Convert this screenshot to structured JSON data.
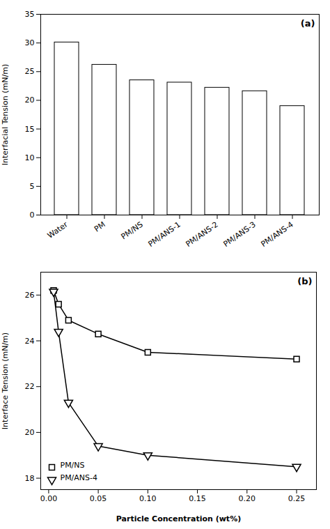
{
  "chart_data": [
    {
      "type": "bar",
      "categories": [
        "Water",
        "PM",
        "PM/NS",
        "PM/ANS-1",
        "PM/ANS-2",
        "PM/ANS-3",
        "PM/ANS-4"
      ],
      "values": [
        30.1,
        26.2,
        23.5,
        23.1,
        22.2,
        21.6,
        19.0
      ],
      "color": "white",
      "ylabel": "Interfacial Tension (mN/m)",
      "ylim": [
        0,
        35
      ],
      "yticks": [
        0,
        5,
        10,
        15,
        20,
        25,
        30,
        35
      ],
      "annotation": "(a)"
    },
    {
      "type": "line",
      "x": [
        0.005,
        0.01,
        0.02,
        0.05,
        0.1,
        0.25
      ],
      "series": [
        {
          "name": "PM/NS",
          "color": "black",
          "marker": "square",
          "values": [
            26.2,
            25.6,
            24.9,
            24.3,
            23.5,
            23.2
          ]
        },
        {
          "name": "PM/ANS-4",
          "color": "black",
          "marker": "triangle_down",
          "values": [
            26.15,
            24.4,
            21.3,
            19.4,
            19.0,
            18.5
          ]
        }
      ],
      "xlabel": "Particle Concentration (wt%)",
      "ylabel": "Interface Tension (mN/m)",
      "xlim": [
        -0.008,
        0.27
      ],
      "xticks": [
        {
          "value": 0.0,
          "label": "0.00"
        },
        {
          "value": 0.05,
          "label": "0.05"
        },
        {
          "value": 0.1,
          "label": "0.10"
        },
        {
          "value": 0.15,
          "label": "0.15"
        },
        {
          "value": 0.2,
          "label": "0.20"
        },
        {
          "value": 0.25,
          "label": "0.25"
        }
      ],
      "ylim": [
        17.5,
        27
      ],
      "yticks": [
        18,
        20,
        22,
        24,
        26
      ],
      "legend": "lower left",
      "annotation": "(b)"
    }
  ]
}
